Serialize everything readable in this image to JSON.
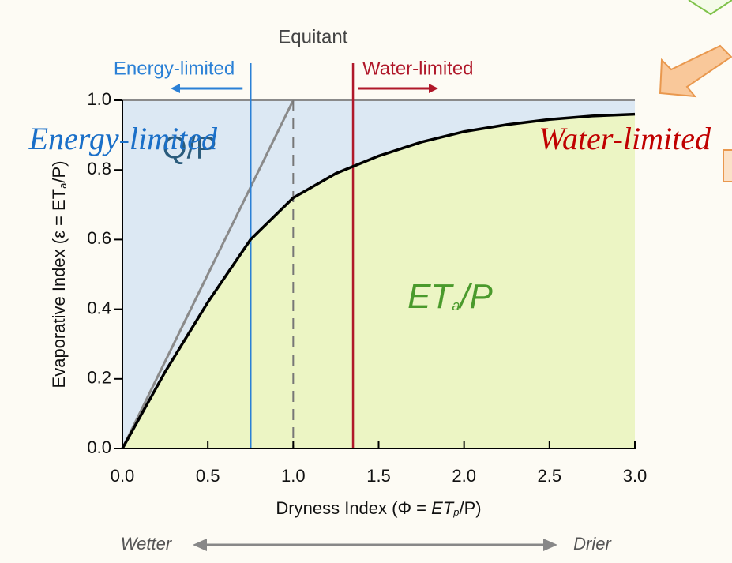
{
  "chart_data": {
    "type": "line",
    "x": [
      0,
      0.25,
      0.5,
      0.75,
      1,
      1.25,
      1.5,
      1.75,
      2,
      2.25,
      2.5,
      2.75,
      3
    ],
    "values": [
      0,
      0.22,
      0.42,
      0.6,
      0.72,
      0.79,
      0.84,
      0.88,
      0.91,
      0.93,
      0.945,
      0.955,
      0.96
    ],
    "color": "#000000",
    "fill_below": "#ecf5c4",
    "fill_above": "#dce8f3",
    "xlim": [
      0,
      3
    ],
    "ylim": [
      0,
      1
    ],
    "xticks": [
      {
        "value": 0,
        "label": "0.0"
      },
      0.5,
      {
        "value": 1,
        "label": "1.0"
      },
      1.5,
      {
        "value": 2,
        "label": "2.0"
      },
      2.5,
      {
        "value": 3,
        "label": "3.0"
      }
    ],
    "yticks": [
      {
        "value": 0,
        "label": "0.0"
      },
      0.2,
      0.4,
      0.6,
      0.8,
      {
        "value": 1,
        "label": "1.0"
      }
    ],
    "x_label": [
      "Dryness Index (Φ = ",
      "ET",
      "p",
      "/P)"
    ],
    "y_label": [
      "Evaporative Index (ε = ET",
      "a",
      "/P)"
    ],
    "diagonal": {
      "x": [
        0,
        1
      ],
      "values": [
        0,
        1
      ],
      "color": "#8a8a8a"
    },
    "reference_lines": [
      {
        "x": 0.75,
        "color": "#2a80d6",
        "label": "Energy-limited"
      },
      {
        "x": 1.35,
        "color": "#b0182a",
        "label": "Water-limited"
      },
      {
        "x": 1,
        "color": "#777777",
        "dashed": true,
        "label": "Equitant"
      }
    ],
    "region_labels": {
      "above": "Q/P",
      "below": [
        "ET",
        "a",
        "/P"
      ]
    },
    "direction_labels": [
      "Wetter",
      "Drier"
    ],
    "overlay_labels": [
      {
        "text": "Energy-limited",
        "color": "#1a6fc8"
      },
      {
        "text": "Water-limited",
        "color": "#c00000"
      }
    ]
  }
}
